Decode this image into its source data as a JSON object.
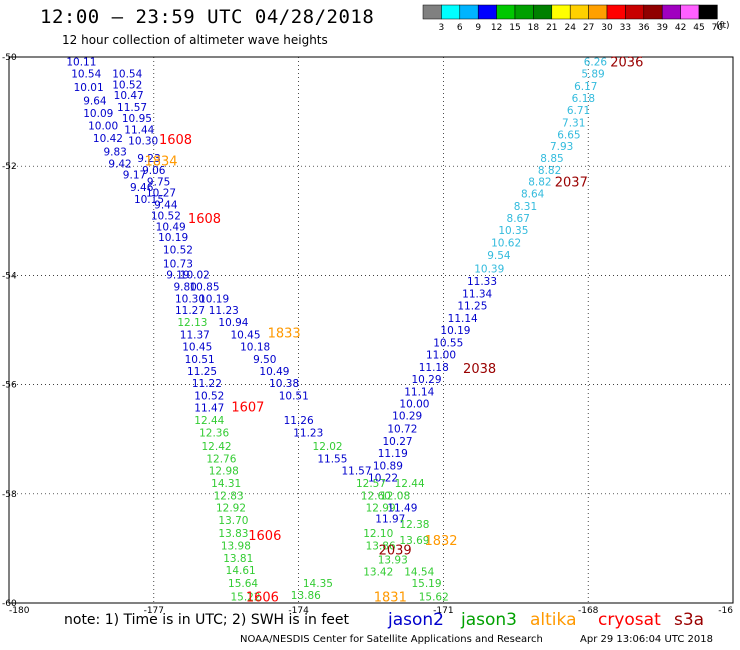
{
  "header": {
    "title": "12:00 – 23:59 UTC 04/28/2018",
    "subtitle": "12 hour collection of altimeter wave heights"
  },
  "scale": {
    "unit_label": "(ft)",
    "bins": [
      {
        "label": "3",
        "color": "#808080"
      },
      {
        "label": "6",
        "color": "#00ffff"
      },
      {
        "label": "9",
        "color": "#00b4ff"
      },
      {
        "label": "12",
        "color": "#0000ff"
      },
      {
        "label": "15",
        "color": "#00c800"
      },
      {
        "label": "18",
        "color": "#00a000"
      },
      {
        "label": "21",
        "color": "#008000"
      },
      {
        "label": "24",
        "color": "#ffff00"
      },
      {
        "label": "27",
        "color": "#ffd000"
      },
      {
        "label": "30",
        "color": "#ffa000"
      },
      {
        "label": "33",
        "color": "#ff0000"
      },
      {
        "label": "36",
        "color": "#c80000"
      },
      {
        "label": "39",
        "color": "#900000"
      },
      {
        "label": "42",
        "color": "#a000c0"
      },
      {
        "label": "45",
        "color": "#ff60ff"
      },
      {
        "label": "70",
        "color": "#000000"
      }
    ]
  },
  "footer": {
    "note": "note: 1) Time is in UTC; 2) SWH is in feet",
    "credit": "NOAA/NESDIS Center for Satellite Applications and Research",
    "stamp": "Apr 29 13:06:04 UTC 2018"
  },
  "legend": [
    {
      "name": "jason2",
      "color": "#0000cc"
    },
    {
      "name": "jason3",
      "color": "#00a000"
    },
    {
      "name": "altika",
      "color": "#ff9900"
    },
    {
      "name": "cryosat",
      "color": "#ff0000"
    },
    {
      "name": "s3a",
      "color": "#990000"
    }
  ],
  "chart_data": {
    "type": "scatter",
    "xlabel": "",
    "ylabel": "",
    "xlim": [
      -180,
      -165
    ],
    "ylim": [
      -60,
      -50
    ],
    "x_ticks": [
      "-180",
      "-177",
      "-174",
      "-171",
      "-168",
      "-16"
    ],
    "y_ticks": [
      "-50",
      "-52",
      "-54",
      "-56",
      "-58",
      "-60"
    ],
    "grid": true,
    "colors": {
      "blue": "#0000cc",
      "cyan": "#33bbdd",
      "green": "#33cc33",
      "orange": "#ff9900",
      "red": "#ff0000",
      "maroon": "#990000"
    },
    "swh_points": [
      {
        "x": -178.5,
        "y": -50.08,
        "text": "10.11",
        "c": "blue"
      },
      {
        "x": -178.4,
        "y": -50.3,
        "text": "10.54",
        "c": "blue"
      },
      {
        "x": -177.55,
        "y": -50.3,
        "text": "10.54",
        "c": "blue"
      },
      {
        "x": -178.35,
        "y": -50.55,
        "text": "10.01",
        "c": "blue"
      },
      {
        "x": -177.55,
        "y": -50.5,
        "text": "10.52",
        "c": "blue"
      },
      {
        "x": -178.22,
        "y": -50.8,
        "text": "9.64",
        "c": "blue"
      },
      {
        "x": -177.52,
        "y": -50.7,
        "text": "10.47",
        "c": "blue"
      },
      {
        "x": -178.15,
        "y": -51.03,
        "text": "10.09",
        "c": "blue"
      },
      {
        "x": -177.45,
        "y": -50.92,
        "text": "11.57",
        "c": "blue"
      },
      {
        "x": -178.05,
        "y": -51.25,
        "text": "10.00",
        "c": "blue"
      },
      {
        "x": -177.35,
        "y": -51.12,
        "text": "10.95",
        "c": "blue"
      },
      {
        "x": -177.95,
        "y": -51.48,
        "text": "10.42",
        "c": "blue"
      },
      {
        "x": -177.3,
        "y": -51.33,
        "text": "11.44",
        "c": "blue"
      },
      {
        "x": -177.22,
        "y": -51.53,
        "text": "10.30",
        "c": "blue"
      },
      {
        "x": -177.8,
        "y": -51.73,
        "text": "9.83",
        "c": "blue"
      },
      {
        "x": -177.7,
        "y": -51.95,
        "text": "9.42",
        "c": "blue"
      },
      {
        "x": -177.1,
        "y": -51.85,
        "text": "9.23",
        "c": "blue"
      },
      {
        "x": -177.4,
        "y": -52.15,
        "text": "9.17",
        "c": "blue"
      },
      {
        "x": -177.0,
        "y": -52.07,
        "text": "9.06",
        "c": "blue"
      },
      {
        "x": -176.9,
        "y": -52.28,
        "text": "9.75",
        "c": "blue"
      },
      {
        "x": -177.25,
        "y": -52.38,
        "text": "9.46",
        "c": "blue"
      },
      {
        "x": -176.85,
        "y": -52.48,
        "text": "10.27",
        "c": "blue"
      },
      {
        "x": -177.1,
        "y": -52.6,
        "text": "10.15",
        "c": "blue"
      },
      {
        "x": -176.75,
        "y": -52.7,
        "text": "9.44",
        "c": "blue"
      },
      {
        "x": -176.75,
        "y": -52.9,
        "text": "10.52",
        "c": "blue"
      },
      {
        "x": -176.65,
        "y": -53.1,
        "text": "10.49",
        "c": "blue"
      },
      {
        "x": -176.6,
        "y": -53.3,
        "text": "10.19",
        "c": "blue"
      },
      {
        "x": -176.5,
        "y": -53.53,
        "text": "10.52",
        "c": "blue"
      },
      {
        "x": -176.5,
        "y": -53.78,
        "text": "10.73",
        "c": "blue"
      },
      {
        "x": -176.15,
        "y": -53.98,
        "text": "10.02",
        "c": "blue"
      },
      {
        "x": -176.5,
        "y": -53.98,
        "text": "9.19",
        "c": "blue"
      },
      {
        "x": -176.35,
        "y": -54.2,
        "text": "9.80",
        "c": "blue"
      },
      {
        "x": -175.95,
        "y": -54.2,
        "text": "10.85",
        "c": "blue"
      },
      {
        "x": -176.25,
        "y": -54.42,
        "text": "10.30",
        "c": "blue"
      },
      {
        "x": -175.75,
        "y": -54.42,
        "text": "10.19",
        "c": "blue"
      },
      {
        "x": -176.25,
        "y": -54.63,
        "text": "11.27",
        "c": "blue"
      },
      {
        "x": -175.55,
        "y": -54.63,
        "text": "11.23",
        "c": "blue"
      },
      {
        "x": -176.2,
        "y": -54.85,
        "text": "12.13",
        "c": "green"
      },
      {
        "x": -175.35,
        "y": -54.85,
        "text": "10.94",
        "c": "blue"
      },
      {
        "x": -176.15,
        "y": -55.08,
        "text": "11.37",
        "c": "blue"
      },
      {
        "x": -175.1,
        "y": -55.08,
        "text": "10.45",
        "c": "blue"
      },
      {
        "x": -176.1,
        "y": -55.3,
        "text": "10.45",
        "c": "blue"
      },
      {
        "x": -174.9,
        "y": -55.3,
        "text": "10.18",
        "c": "blue"
      },
      {
        "x": -176.05,
        "y": -55.53,
        "text": "10.51",
        "c": "blue"
      },
      {
        "x": -174.7,
        "y": -55.53,
        "text": "9.50",
        "c": "blue"
      },
      {
        "x": -176.0,
        "y": -55.75,
        "text": "11.25",
        "c": "blue"
      },
      {
        "x": -174.5,
        "y": -55.75,
        "text": "10.49",
        "c": "blue"
      },
      {
        "x": -175.9,
        "y": -55.97,
        "text": "11.22",
        "c": "blue"
      },
      {
        "x": -174.3,
        "y": -55.97,
        "text": "10.38",
        "c": "blue"
      },
      {
        "x": -175.85,
        "y": -56.2,
        "text": "10.52",
        "c": "blue"
      },
      {
        "x": -174.1,
        "y": -56.2,
        "text": "10.51",
        "c": "blue"
      },
      {
        "x": -175.85,
        "y": -56.42,
        "text": "11.47",
        "c": "blue"
      },
      {
        "x": -175.85,
        "y": -56.65,
        "text": "12.44",
        "c": "green"
      },
      {
        "x": -174.0,
        "y": -56.65,
        "text": "11.26",
        "c": "blue"
      },
      {
        "x": -175.75,
        "y": -56.88,
        "text": "12.36",
        "c": "green"
      },
      {
        "x": -173.8,
        "y": -56.88,
        "text": "11.23",
        "c": "blue"
      },
      {
        "x": -175.7,
        "y": -57.12,
        "text": "12.42",
        "c": "green"
      },
      {
        "x": -173.4,
        "y": -57.12,
        "text": "12.02",
        "c": "green"
      },
      {
        "x": -175.6,
        "y": -57.35,
        "text": "12.76",
        "c": "green"
      },
      {
        "x": -173.3,
        "y": -57.35,
        "text": "11.55",
        "c": "blue"
      },
      {
        "x": -175.55,
        "y": -57.57,
        "text": "12.98",
        "c": "green"
      },
      {
        "x": -172.8,
        "y": -57.57,
        "text": "11.57",
        "c": "blue"
      },
      {
        "x": -175.5,
        "y": -57.8,
        "text": "14.31",
        "c": "green"
      },
      {
        "x": -172.5,
        "y": -57.8,
        "text": "12.57",
        "c": "green"
      },
      {
        "x": -171.7,
        "y": -57.8,
        "text": "12.44",
        "c": "green"
      },
      {
        "x": -175.45,
        "y": -58.03,
        "text": "12.83",
        "c": "green"
      },
      {
        "x": -172.4,
        "y": -58.03,
        "text": "12.60",
        "c": "green"
      },
      {
        "x": -172.0,
        "y": -58.03,
        "text": "12.08",
        "c": "green"
      },
      {
        "x": -175.4,
        "y": -58.25,
        "text": "12.92",
        "c": "green"
      },
      {
        "x": -172.3,
        "y": -58.25,
        "text": "12.99",
        "c": "green"
      },
      {
        "x": -171.85,
        "y": -58.25,
        "text": "11.49",
        "c": "blue"
      },
      {
        "x": -175.35,
        "y": -58.48,
        "text": "13.70",
        "c": "green"
      },
      {
        "x": -172.1,
        "y": -58.45,
        "text": "11.97",
        "c": "blue"
      },
      {
        "x": -171.6,
        "y": -58.55,
        "text": "12.38",
        "c": "green"
      },
      {
        "x": -175.35,
        "y": -58.72,
        "text": "13.83",
        "c": "green"
      },
      {
        "x": -172.35,
        "y": -58.72,
        "text": "12.10",
        "c": "green"
      },
      {
        "x": -175.3,
        "y": -58.95,
        "text": "13.98",
        "c": "green"
      },
      {
        "x": -172.3,
        "y": -58.95,
        "text": "13.86",
        "c": "green"
      },
      {
        "x": -171.6,
        "y": -58.85,
        "text": "13.69",
        "c": "green"
      },
      {
        "x": -175.25,
        "y": -59.18,
        "text": "13.81",
        "c": "green"
      },
      {
        "x": -172.05,
        "y": -59.2,
        "text": "13.93",
        "c": "green"
      },
      {
        "x": -175.2,
        "y": -59.4,
        "text": "14.61",
        "c": "green"
      },
      {
        "x": -172.35,
        "y": -59.42,
        "text": "13.42",
        "c": "green"
      },
      {
        "x": -171.5,
        "y": -59.42,
        "text": "14.54",
        "c": "green"
      },
      {
        "x": -175.15,
        "y": -59.63,
        "text": "15.64",
        "c": "green"
      },
      {
        "x": -173.6,
        "y": -59.63,
        "text": "14.35",
        "c": "green"
      },
      {
        "x": -171.35,
        "y": -59.63,
        "text": "15.19",
        "c": "green"
      },
      {
        "x": -175.1,
        "y": -59.88,
        "text": "15.22",
        "c": "green"
      },
      {
        "x": -173.85,
        "y": -59.85,
        "text": "13.86",
        "c": "green"
      },
      {
        "x": -171.2,
        "y": -59.88,
        "text": "15.62",
        "c": "green"
      },
      {
        "x": -167.85,
        "y": -50.08,
        "text": "6.26",
        "c": "cyan"
      },
      {
        "x": -167.9,
        "y": -50.3,
        "text": "5.89",
        "c": "cyan"
      },
      {
        "x": -168.05,
        "y": -50.53,
        "text": "6.17",
        "c": "cyan"
      },
      {
        "x": -168.1,
        "y": -50.75,
        "text": "6.18",
        "c": "cyan"
      },
      {
        "x": -168.2,
        "y": -50.97,
        "text": "6.71",
        "c": "cyan"
      },
      {
        "x": -168.3,
        "y": -51.2,
        "text": "7.31",
        "c": "cyan"
      },
      {
        "x": -168.4,
        "y": -51.42,
        "text": "6.65",
        "c": "cyan"
      },
      {
        "x": -168.55,
        "y": -51.63,
        "text": "7.93",
        "c": "cyan"
      },
      {
        "x": -168.75,
        "y": -51.85,
        "text": "8.85",
        "c": "cyan"
      },
      {
        "x": -168.8,
        "y": -52.07,
        "text": "8.82",
        "c": "cyan"
      },
      {
        "x": -169.0,
        "y": -52.28,
        "text": "8.82",
        "c": "cyan"
      },
      {
        "x": -169.15,
        "y": -52.5,
        "text": "8.64",
        "c": "cyan"
      },
      {
        "x": -169.3,
        "y": -52.73,
        "text": "8.31",
        "c": "cyan"
      },
      {
        "x": -169.45,
        "y": -52.95,
        "text": "8.67",
        "c": "cyan"
      },
      {
        "x": -169.55,
        "y": -53.17,
        "text": "10.35",
        "c": "cyan"
      },
      {
        "x": -169.7,
        "y": -53.4,
        "text": "10.62",
        "c": "cyan"
      },
      {
        "x": -169.85,
        "y": -53.63,
        "text": "9.54",
        "c": "cyan"
      },
      {
        "x": -170.05,
        "y": -53.87,
        "text": "10.39",
        "c": "cyan"
      },
      {
        "x": -170.2,
        "y": -54.1,
        "text": "11.33",
        "c": "blue"
      },
      {
        "x": -170.3,
        "y": -54.33,
        "text": "11.34",
        "c": "blue"
      },
      {
        "x": -170.4,
        "y": -54.55,
        "text": "11.25",
        "c": "blue"
      },
      {
        "x": -170.6,
        "y": -54.78,
        "text": "11.14",
        "c": "blue"
      },
      {
        "x": -170.75,
        "y": -55.0,
        "text": "10.19",
        "c": "blue"
      },
      {
        "x": -170.9,
        "y": -55.23,
        "text": "10.55",
        "c": "blue"
      },
      {
        "x": -171.05,
        "y": -55.45,
        "text": "11.00",
        "c": "blue"
      },
      {
        "x": -171.2,
        "y": -55.68,
        "text": "11.18",
        "c": "blue"
      },
      {
        "x": -171.35,
        "y": -55.9,
        "text": "10.29",
        "c": "blue"
      },
      {
        "x": -171.5,
        "y": -56.13,
        "text": "11.14",
        "c": "blue"
      },
      {
        "x": -171.6,
        "y": -56.35,
        "text": "10.00",
        "c": "blue"
      },
      {
        "x": -171.75,
        "y": -56.57,
        "text": "10.29",
        "c": "blue"
      },
      {
        "x": -171.85,
        "y": -56.8,
        "text": "10.72",
        "c": "blue"
      },
      {
        "x": -171.95,
        "y": -57.03,
        "text": "10.27",
        "c": "blue"
      },
      {
        "x": -172.05,
        "y": -57.25,
        "text": "11.19",
        "c": "blue"
      },
      {
        "x": -172.15,
        "y": -57.48,
        "text": "10.89",
        "c": "blue"
      },
      {
        "x": -172.25,
        "y": -57.7,
        "text": "10.22",
        "c": "blue"
      }
    ],
    "time_labels": [
      {
        "x": -167.2,
        "y": -50.08,
        "text": "2036",
        "c": "maroon"
      },
      {
        "x": -176.55,
        "y": -51.5,
        "text": "1608",
        "c": "red"
      },
      {
        "x": -176.85,
        "y": -51.9,
        "text": "1834",
        "c": "orange"
      },
      {
        "x": -168.35,
        "y": -52.28,
        "text": "2037",
        "c": "maroon"
      },
      {
        "x": -175.95,
        "y": -52.95,
        "text": "1608",
        "c": "red"
      },
      {
        "x": -174.3,
        "y": -55.05,
        "text": "1833",
        "c": "orange"
      },
      {
        "x": -170.25,
        "y": -55.7,
        "text": "2038",
        "c": "maroon"
      },
      {
        "x": -175.05,
        "y": -56.4,
        "text": "1607",
        "c": "red"
      },
      {
        "x": -174.7,
        "y": -58.75,
        "text": "1606",
        "c": "red"
      },
      {
        "x": -171.05,
        "y": -58.85,
        "text": "1832",
        "c": "orange"
      },
      {
        "x": -172.0,
        "y": -59.02,
        "text": "2039",
        "c": "maroon"
      },
      {
        "x": -174.75,
        "y": -59.88,
        "text": "1606",
        "c": "red"
      },
      {
        "x": -172.1,
        "y": -59.88,
        "text": "1831",
        "c": "orange"
      }
    ]
  }
}
